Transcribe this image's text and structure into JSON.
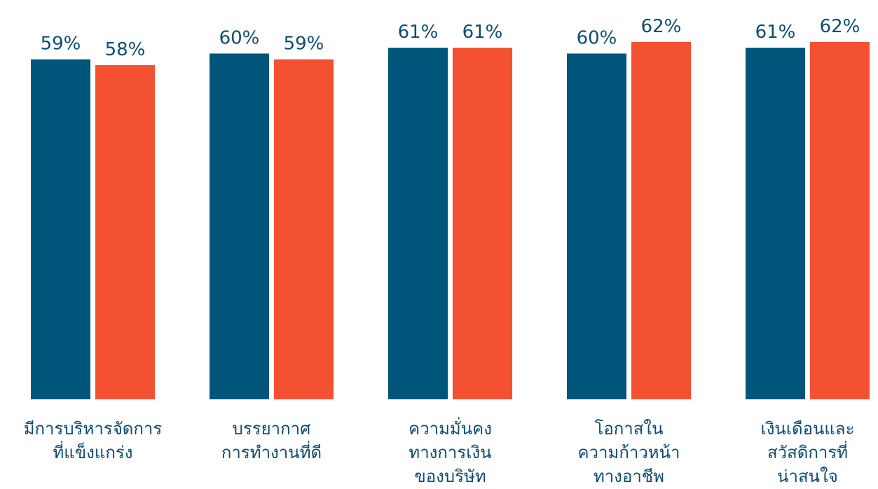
{
  "chart_data": {
    "type": "bar",
    "categories": [
      [
        "มีการบริหารจัดการ",
        "ที่แข็งแกร่ง"
      ],
      [
        "บรรยากาศ",
        "การทำงานที่ดี"
      ],
      [
        "ความมั่นคง",
        "ทางการเงิน",
        "ของบริษัท"
      ],
      [
        "โอกาสใน",
        "ความก้าวหน้า",
        "ทางอาชีพ"
      ],
      [
        "เงินเดือนและ",
        "สวัสดิการที่",
        "น่าสนใจ"
      ]
    ],
    "series": [
      {
        "values": [
          59,
          60,
          61,
          60,
          61
        ],
        "labels": [
          "59%",
          "60%",
          "61%",
          "60%",
          "61%"
        ],
        "color": "#00567a"
      },
      {
        "values": [
          58,
          59,
          61,
          62,
          62
        ],
        "labels": [
          "58%",
          "59%",
          "61%",
          "62%",
          "62%"
        ],
        "color": "#f45032"
      }
    ],
    "ylim": [
      0,
      62
    ],
    "label_color": "#0b4d73",
    "grid": false,
    "legend": "none"
  }
}
